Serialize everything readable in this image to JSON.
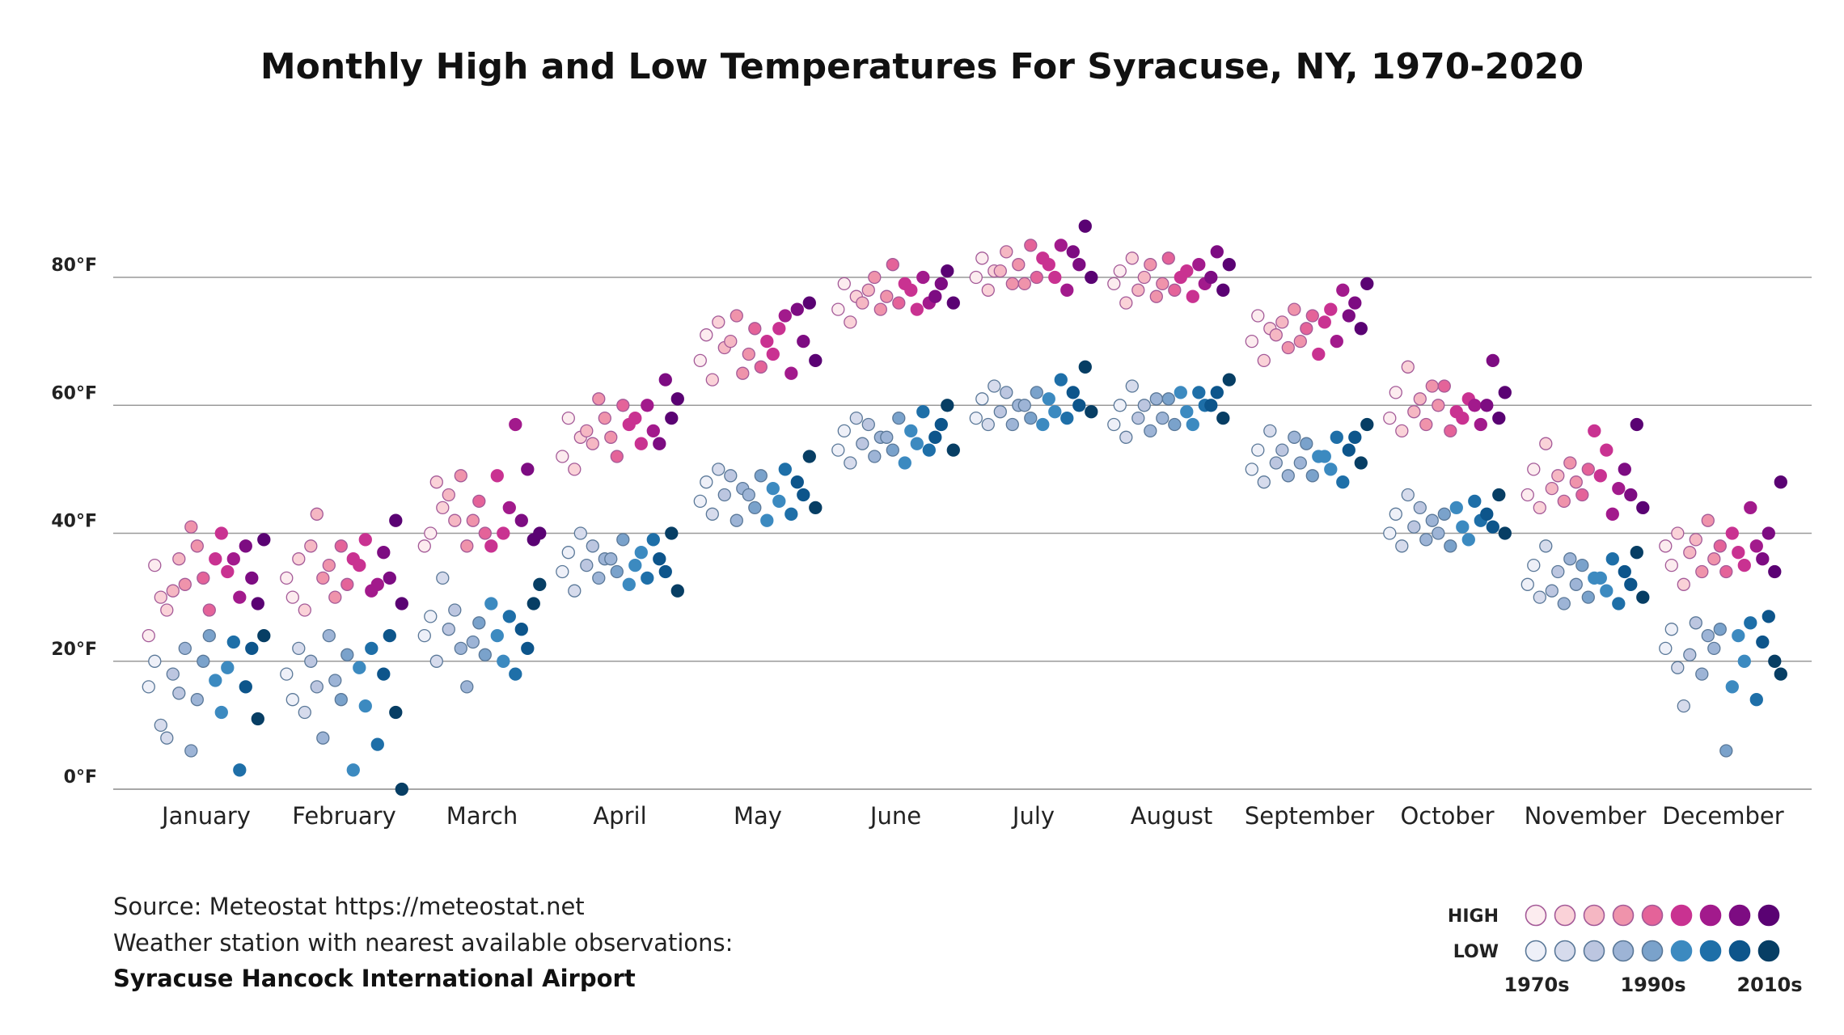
{
  "chart_data": {
    "type": "scatter",
    "title": "Monthly High and Low Temperatures For Syracuse, NY, 1970-2020",
    "xlabel": "",
    "ylabel": "",
    "ylim": [
      0,
      90
    ],
    "yticks": [
      0,
      20,
      40,
      60,
      80
    ],
    "ytick_labels": [
      "0°F",
      "20°F",
      "40°F",
      "60°F",
      "80°F"
    ],
    "grid": true,
    "categories": [
      "January",
      "February",
      "March",
      "April",
      "May",
      "June",
      "July",
      "August",
      "September",
      "October",
      "November",
      "December"
    ],
    "decades": [
      1970,
      1980,
      1990,
      2000,
      2010
    ],
    "series": [
      {
        "key": "high",
        "values_by_month": [
          [
            [
              24,
              35,
              30,
              28
            ],
            [
              31,
              36,
              32,
              41
            ],
            [
              38,
              33,
              28,
              36
            ],
            [
              40,
              34,
              36,
              30
            ],
            [
              38,
              33,
              29,
              39
            ]
          ],
          [
            [
              33,
              30,
              36,
              28
            ],
            [
              38,
              43,
              33,
              35
            ],
            [
              30,
              38,
              32,
              36
            ],
            [
              35,
              39,
              31,
              32
            ],
            [
              37,
              33,
              42,
              29
            ]
          ],
          [
            [
              38,
              40,
              48,
              44
            ],
            [
              46,
              42,
              49,
              38
            ],
            [
              42,
              45,
              40,
              38
            ],
            [
              49,
              40,
              44,
              57
            ],
            [
              42,
              50,
              39,
              40
            ]
          ],
          [
            [
              52,
              58,
              50,
              55
            ],
            [
              56,
              54,
              61,
              58
            ],
            [
              55,
              52,
              60,
              57
            ],
            [
              58,
              54,
              60,
              56
            ],
            [
              54,
              64,
              58,
              61
            ]
          ],
          [
            [
              67,
              71,
              64,
              73
            ],
            [
              69,
              70,
              74,
              65
            ],
            [
              68,
              72,
              66,
              70
            ],
            [
              68,
              72,
              74,
              65
            ],
            [
              75,
              70,
              76,
              67
            ]
          ],
          [
            [
              75,
              79,
              73,
              77
            ],
            [
              76,
              78,
              80,
              75
            ],
            [
              77,
              82,
              76,
              79
            ],
            [
              78,
              75,
              80,
              76
            ],
            [
              77,
              79,
              81,
              76
            ]
          ],
          [
            [
              80,
              83,
              78,
              81
            ],
            [
              81,
              84,
              79,
              82
            ],
            [
              79,
              85,
              80,
              83
            ],
            [
              82,
              80,
              85,
              78
            ],
            [
              84,
              82,
              88,
              80
            ]
          ],
          [
            [
              79,
              81,
              76,
              83
            ],
            [
              78,
              80,
              82,
              77
            ],
            [
              79,
              83,
              78,
              80
            ],
            [
              81,
              77,
              82,
              79
            ],
            [
              80,
              84,
              78,
              82
            ]
          ],
          [
            [
              70,
              74,
              67,
              72
            ],
            [
              71,
              73,
              69,
              75
            ],
            [
              70,
              72,
              74,
              68
            ],
            [
              73,
              75,
              70,
              78
            ],
            [
              74,
              76,
              72,
              79
            ]
          ],
          [
            [
              58,
              62,
              56,
              66
            ],
            [
              59,
              61,
              57,
              63
            ],
            [
              60,
              63,
              56,
              59
            ],
            [
              58,
              61,
              60,
              57
            ],
            [
              60,
              67,
              58,
              62
            ]
          ],
          [
            [
              46,
              50,
              44,
              54
            ],
            [
              47,
              49,
              45,
              51
            ],
            [
              48,
              46,
              50,
              56
            ],
            [
              49,
              53,
              43,
              47
            ],
            [
              50,
              46,
              57,
              44
            ]
          ],
          [
            [
              38,
              35,
              40,
              32
            ],
            [
              37,
              39,
              34,
              42
            ],
            [
              36,
              38,
              34,
              40
            ],
            [
              37,
              35,
              44,
              38
            ],
            [
              36,
              40,
              34,
              48
            ]
          ]
        ]
      },
      {
        "key": "low",
        "values_by_month": [
          [
            [
              16,
              20,
              10,
              8
            ],
            [
              18,
              15,
              22,
              6
            ],
            [
              14,
              20,
              24,
              17
            ],
            [
              12,
              19,
              23,
              3
            ],
            [
              16,
              22,
              11,
              24
            ]
          ],
          [
            [
              18,
              14,
              22,
              12
            ],
            [
              20,
              16,
              8,
              24
            ],
            [
              17,
              14,
              21,
              3
            ],
            [
              19,
              13,
              22,
              7
            ],
            [
              18,
              24,
              12,
              0
            ]
          ],
          [
            [
              24,
              27,
              20,
              33
            ],
            [
              25,
              28,
              22,
              16
            ],
            [
              23,
              26,
              21,
              29
            ],
            [
              24,
              20,
              27,
              18
            ],
            [
              25,
              22,
              29,
              32
            ]
          ],
          [
            [
              34,
              37,
              31,
              40
            ],
            [
              35,
              38,
              33,
              36
            ],
            [
              36,
              34,
              39,
              32
            ],
            [
              35,
              37,
              33,
              39
            ],
            [
              36,
              34,
              40,
              31
            ]
          ],
          [
            [
              45,
              48,
              43,
              50
            ],
            [
              46,
              49,
              42,
              47
            ],
            [
              46,
              44,
              49,
              42
            ],
            [
              47,
              45,
              50,
              43
            ],
            [
              48,
              46,
              52,
              44
            ]
          ],
          [
            [
              53,
              56,
              51,
              58
            ],
            [
              54,
              57,
              52,
              55
            ],
            [
              55,
              53,
              58,
              51
            ],
            [
              56,
              54,
              59,
              53
            ],
            [
              55,
              57,
              60,
              53
            ]
          ],
          [
            [
              58,
              61,
              57,
              63
            ],
            [
              59,
              62,
              57,
              60
            ],
            [
              60,
              58,
              62,
              57
            ],
            [
              61,
              59,
              64,
              58
            ],
            [
              62,
              60,
              66,
              59
            ]
          ],
          [
            [
              57,
              60,
              55,
              63
            ],
            [
              58,
              60,
              56,
              61
            ],
            [
              58,
              61,
              57,
              62
            ],
            [
              59,
              57,
              62,
              60
            ],
            [
              60,
              62,
              58,
              64
            ]
          ],
          [
            [
              50,
              53,
              48,
              56
            ],
            [
              51,
              53,
              49,
              55
            ],
            [
              51,
              54,
              49,
              52
            ],
            [
              52,
              50,
              55,
              48
            ],
            [
              53,
              55,
              51,
              57
            ]
          ],
          [
            [
              40,
              43,
              38,
              46
            ],
            [
              41,
              44,
              39,
              42
            ],
            [
              40,
              43,
              38,
              44
            ],
            [
              41,
              39,
              45,
              42
            ],
            [
              43,
              41,
              46,
              40
            ]
          ],
          [
            [
              32,
              35,
              30,
              38
            ],
            [
              31,
              34,
              29,
              36
            ],
            [
              32,
              35,
              30,
              33
            ],
            [
              33,
              31,
              36,
              29
            ],
            [
              34,
              32,
              37,
              30
            ]
          ],
          [
            [
              22,
              25,
              19,
              13
            ],
            [
              21,
              26,
              18,
              24
            ],
            [
              22,
              25,
              6,
              16
            ],
            [
              24,
              20,
              26,
              14
            ],
            [
              23,
              27,
              20,
              18
            ]
          ]
        ]
      }
    ],
    "legend": {
      "placement": "bottom-right",
      "rows": [
        {
          "key": "high",
          "label": "HIGH",
          "colors": [
            "#fcecef",
            "#fad2d8",
            "#f5b7c3",
            "#ef93ab",
            "#e46399",
            "#c93291",
            "#a21a8c",
            "#7d0c82",
            "#5a0273"
          ],
          "stroke": "#a45a98"
        },
        {
          "key": "low",
          "label": "LOW",
          "colors": [
            "#eef0f8",
            "#d6dbec",
            "#bcc6e0",
            "#9db4d6",
            "#7aa2cb",
            "#3c8ac0",
            "#1e6fa8",
            "#0d558b",
            "#073e64"
          ],
          "stroke": "#5a7898"
        }
      ],
      "decade_labels": [
        "1970s",
        "1990s",
        "2010s"
      ]
    }
  },
  "source": {
    "line1": "Source: Meteostat https://meteostat.net",
    "line2": "Weather station with nearest available observations:",
    "line3": "Syracuse Hancock International Airport"
  }
}
